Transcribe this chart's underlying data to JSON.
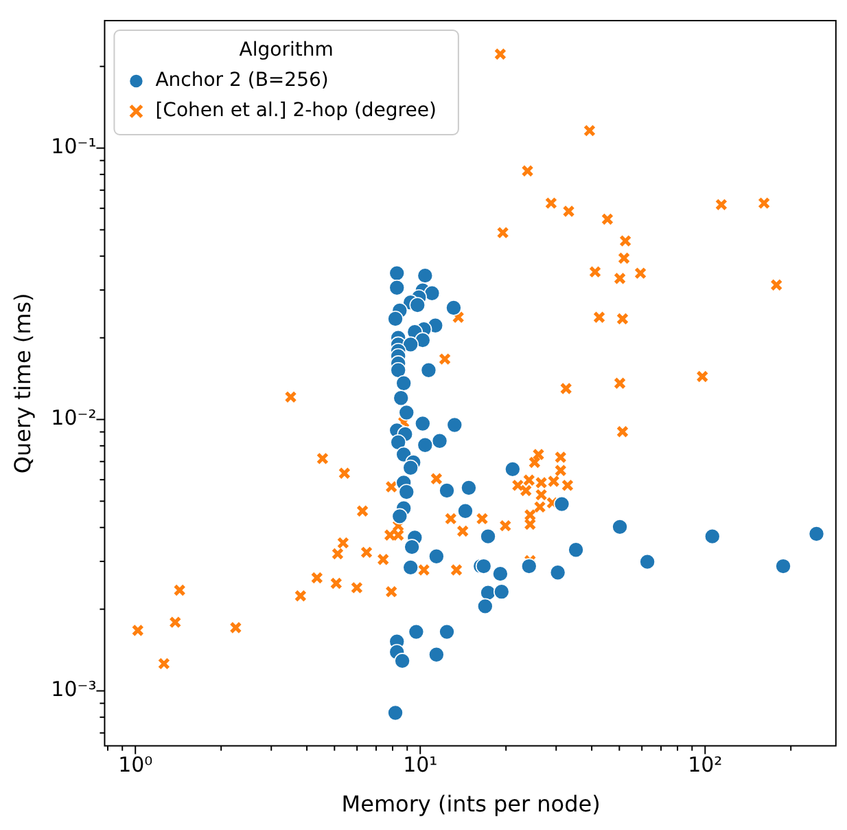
{
  "chart_data": {
    "type": "scatter",
    "xlabel": "Memory (ints per node)",
    "ylabel": "Query time (ms)",
    "legend_title": "Algorithm",
    "legend": "top left",
    "log": "xy",
    "grid": false,
    "xlim": [
      0.78,
      291
    ],
    "ylim": [
      0.000627,
      0.295
    ],
    "xticks": [
      {
        "value": 0.8,
        "label": null
      },
      {
        "value": 0.9,
        "label": null
      },
      {
        "value": 1,
        "label": "10⁰"
      },
      {
        "value": 2,
        "label": null
      },
      {
        "value": 3,
        "label": null
      },
      {
        "value": 4,
        "label": null
      },
      {
        "value": 5,
        "label": null
      },
      {
        "value": 6,
        "label": null
      },
      {
        "value": 7,
        "label": null
      },
      {
        "value": 8,
        "label": null
      },
      {
        "value": 9,
        "label": null
      },
      {
        "value": 10,
        "label": "10¹"
      },
      {
        "value": 20,
        "label": null
      },
      {
        "value": 30,
        "label": null
      },
      {
        "value": 40,
        "label": null
      },
      {
        "value": 50,
        "label": null
      },
      {
        "value": 60,
        "label": null
      },
      {
        "value": 70,
        "label": null
      },
      {
        "value": 80,
        "label": null
      },
      {
        "value": 90,
        "label": null
      },
      {
        "value": 100,
        "label": "10²"
      },
      {
        "value": 200,
        "label": null
      }
    ],
    "yticks": [
      {
        "value": 0.0007,
        "label": null
      },
      {
        "value": 0.0008,
        "label": null
      },
      {
        "value": 0.0009,
        "label": null
      },
      {
        "value": 0.001,
        "label": "10⁻³"
      },
      {
        "value": 0.002,
        "label": null
      },
      {
        "value": 0.003,
        "label": null
      },
      {
        "value": 0.004,
        "label": null
      },
      {
        "value": 0.005,
        "label": null
      },
      {
        "value": 0.006,
        "label": null
      },
      {
        "value": 0.007,
        "label": null
      },
      {
        "value": 0.008,
        "label": null
      },
      {
        "value": 0.009,
        "label": null
      },
      {
        "value": 0.01,
        "label": "10⁻²"
      },
      {
        "value": 0.02,
        "label": null
      },
      {
        "value": 0.03,
        "label": null
      },
      {
        "value": 0.04,
        "label": null
      },
      {
        "value": 0.05,
        "label": null
      },
      {
        "value": 0.06,
        "label": null
      },
      {
        "value": 0.07,
        "label": null
      },
      {
        "value": 0.08,
        "label": null
      },
      {
        "value": 0.09,
        "label": null
      },
      {
        "value": 0.1,
        "label": "10⁻¹"
      },
      {
        "value": 0.2,
        "label": null
      }
    ],
    "series": [
      {
        "name": "Anchor 2 (B=256)",
        "color": "#1f77b4",
        "marker": "circle",
        "x": [
          8.28,
          10.4,
          8.28,
          10.2,
          11.0,
          9.89,
          9.25,
          9.78,
          8.47,
          8.18,
          13.1,
          11.3,
          10.3,
          9.57,
          10.2,
          8.37,
          8.37,
          9.25,
          8.37,
          8.37,
          8.37,
          8.37,
          10.7,
          8.75,
          8.56,
          8.95,
          10.2,
          13.2,
          8.28,
          8.85,
          8.37,
          10.4,
          11.7,
          8.75,
          9.46,
          9.25,
          8.75,
          8.95,
          12.4,
          14.8,
          8.75,
          8.47,
          14.4,
          9.57,
          9.35,
          11.4,
          9.25,
          16.3,
          9.68,
          12.4,
          8.28,
          8.28,
          11.4,
          8.65,
          8.18,
          21.1,
          31.4,
          17.3,
          35.2,
          16.7,
          19.1,
          24.1,
          30.4,
          17.3,
          19.3,
          50.2,
          106,
          246,
          62.7,
          188,
          16.9
        ],
        "values": [
          0.0346,
          0.0339,
          0.0306,
          0.0299,
          0.0292,
          0.0282,
          0.027,
          0.0264,
          0.0252,
          0.0235,
          0.0258,
          0.0222,
          0.0215,
          0.021,
          0.0196,
          0.02,
          0.0189,
          0.0189,
          0.0179,
          0.0171,
          0.0161,
          0.0152,
          0.0152,
          0.0136,
          0.012,
          0.0106,
          0.00966,
          0.00955,
          0.00912,
          0.00883,
          0.00824,
          0.00805,
          0.00834,
          0.00743,
          0.00695,
          0.00664,
          0.00585,
          0.00541,
          0.00547,
          0.0056,
          0.00471,
          0.0044,
          0.0046,
          0.00367,
          0.00339,
          0.00313,
          0.00285,
          0.00288,
          0.00165,
          0.00165,
          0.00152,
          0.00139,
          0.00136,
          0.00129,
          0.00083,
          0.00656,
          0.00488,
          0.00371,
          0.00331,
          0.00288,
          0.0027,
          0.00288,
          0.00273,
          0.0023,
          0.00232,
          0.00402,
          0.00371,
          0.00379,
          0.00299,
          0.00288,
          0.00205
        ]
      },
      {
        "name": "[Cohen et al.] 2-hop (degree)",
        "color": "#ff7f0e",
        "marker": "cross",
        "x": [
          1.02,
          1.26,
          1.38,
          1.43,
          2.25,
          3.51,
          3.8,
          4.34,
          4.54,
          5.07,
          5.13,
          5.36,
          5.42,
          5.99,
          6.27,
          6.48,
          7.41,
          7.92,
          7.92,
          8.37,
          8.37,
          7.83,
          8.75,
          10.3,
          13.6,
          12.2,
          11.4,
          12.8,
          14.1,
          13.4,
          16.5,
          19.9,
          26.0,
          31.1,
          25.2,
          31.1,
          24.1,
          26.6,
          29.4,
          32.9,
          22.0,
          23.5,
          26.6,
          29.1,
          26.3,
          24.3,
          24.3,
          24.3,
          24.3,
          19.1,
          39.3,
          23.8,
          28.8,
          33.2,
          114,
          161,
          19.5,
          45.4,
          52.5,
          51.9,
          41.1,
          50.2,
          59.3,
          178,
          42.5,
          51.3,
          32.5,
          50.2,
          97.8,
          51.3
        ],
        "values": [
          0.00167,
          0.00126,
          0.00179,
          0.00235,
          0.00171,
          0.0121,
          0.00224,
          0.00261,
          0.00718,
          0.00249,
          0.0032,
          0.00351,
          0.00634,
          0.0024,
          0.0046,
          0.00324,
          0.00305,
          0.00565,
          0.00232,
          0.00406,
          0.00375,
          0.00375,
          0.00977,
          0.00279,
          0.0238,
          0.0167,
          0.00605,
          0.00431,
          0.00388,
          0.00279,
          0.00431,
          0.00406,
          0.00743,
          0.00726,
          0.00695,
          0.00649,
          0.00598,
          0.00585,
          0.00592,
          0.00572,
          0.00572,
          0.00547,
          0.00528,
          0.00493,
          0.00476,
          0.00445,
          0.00411,
          0.00302,
          0.00292,
          0.222,
          0.116,
          0.0824,
          0.0627,
          0.0585,
          0.0619,
          0.0627,
          0.0488,
          0.0547,
          0.0455,
          0.0393,
          0.035,
          0.0331,
          0.0346,
          0.0313,
          0.0238,
          0.0235,
          0.013,
          0.0136,
          0.0144,
          0.00902
        ]
      }
    ]
  }
}
